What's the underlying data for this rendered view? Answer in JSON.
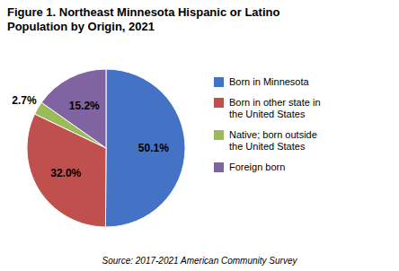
{
  "chart_data": {
    "type": "pie",
    "title": "Figure 1. Northeast Minnesota Hispanic or Latino\nPopulation by Origin, 2021",
    "annotations": [
      "Source: 2017-2021 American Community Survey"
    ],
    "categories": [
      "Born in Minnesota",
      "Born in other state in\nthe United States",
      "Native; born outside\nthe United States",
      "Foreign born"
    ],
    "values": [
      50.1,
      32.0,
      2.7,
      15.2
    ],
    "value_labels": [
      "50.1%",
      "32.0%",
      "2.7%",
      "15.2%"
    ],
    "colors": [
      "#4472C4",
      "#C0504D",
      "#9BBB59",
      "#8064A2"
    ],
    "data_labels": true,
    "legend": "right"
  }
}
